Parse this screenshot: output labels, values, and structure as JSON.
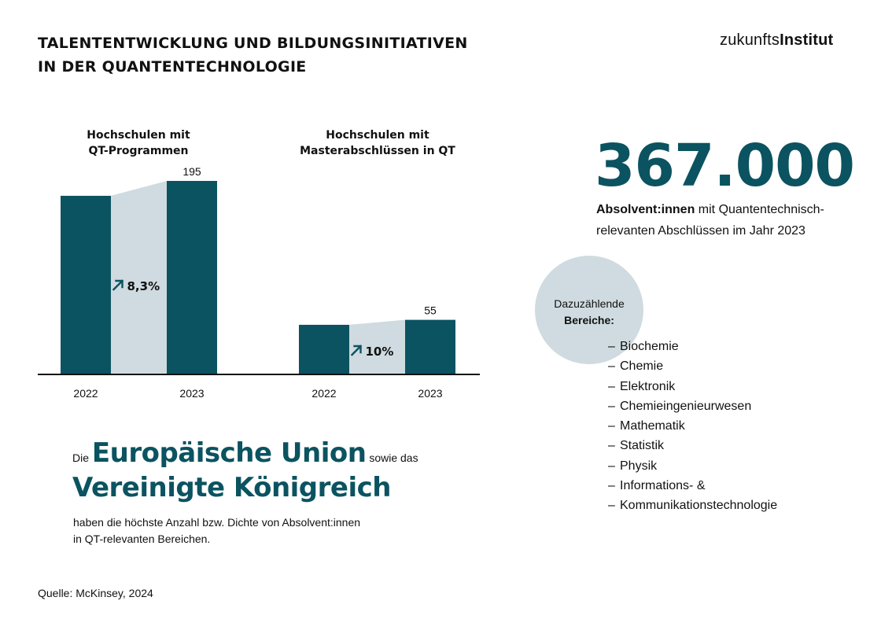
{
  "title": {
    "line1": "TALENTENTWICKLUNG UND BILDUNGSINITIATIVEN",
    "line2": "IN DER QUANTENTECHNOLOGIE"
  },
  "logo": {
    "part1": "zukunfts",
    "part2": "Institut"
  },
  "colors": {
    "bar": "#0b5360",
    "bridge": "#cfdbe0",
    "accent": "#0b5360",
    "baseline": "#111111"
  },
  "chart_data": [
    {
      "type": "bar",
      "title_line1": "Hochschulen mit",
      "title_line2": "QT-Programmen",
      "categories": [
        "2022",
        "2023"
      ],
      "values": [
        180,
        195
      ],
      "data_labels": [
        "",
        "195"
      ],
      "growth_label": "8,3%",
      "growth_icon": "arrow-up-right-icon",
      "ylim": [
        0,
        195
      ]
    },
    {
      "type": "bar",
      "title_line1": "Hochschulen mit",
      "title_line2": "Masterabschlüssen in QT",
      "categories": [
        "2022",
        "2023"
      ],
      "values": [
        50,
        55
      ],
      "data_labels": [
        "",
        "55"
      ],
      "growth_label": "10%",
      "growth_icon": "arrow-up-right-icon",
      "ylim": [
        0,
        195
      ]
    }
  ],
  "stat": {
    "number": "367.000",
    "desc_bold": "Absolvent:innen",
    "desc_rest1": " mit Quantentechnisch-",
    "desc_line2": "relevanten Abschlüssen im Jahr 2023"
  },
  "areas": {
    "heading_line1": "Dazuzählende",
    "heading_line2": "Bereiche:",
    "items": [
      "Biochemie",
      "Chemie",
      "Elektronik",
      "Chemieingenieurwesen",
      "Mathematik",
      "Statistik",
      "Physik",
      "Informations- &",
      "Kommunikationstechnologie"
    ]
  },
  "eu": {
    "prefix": "Die ",
    "emph1": "Europäische Union",
    "middle": " sowie das",
    "emph2": "Vereinigte Königreich",
    "desc_line1": "haben die höchste Anzahl bzw. Dichte von Absolvent:innen",
    "desc_line2": "in QT-relevanten Bereichen."
  },
  "source": "Quelle: McKinsey, 2024"
}
